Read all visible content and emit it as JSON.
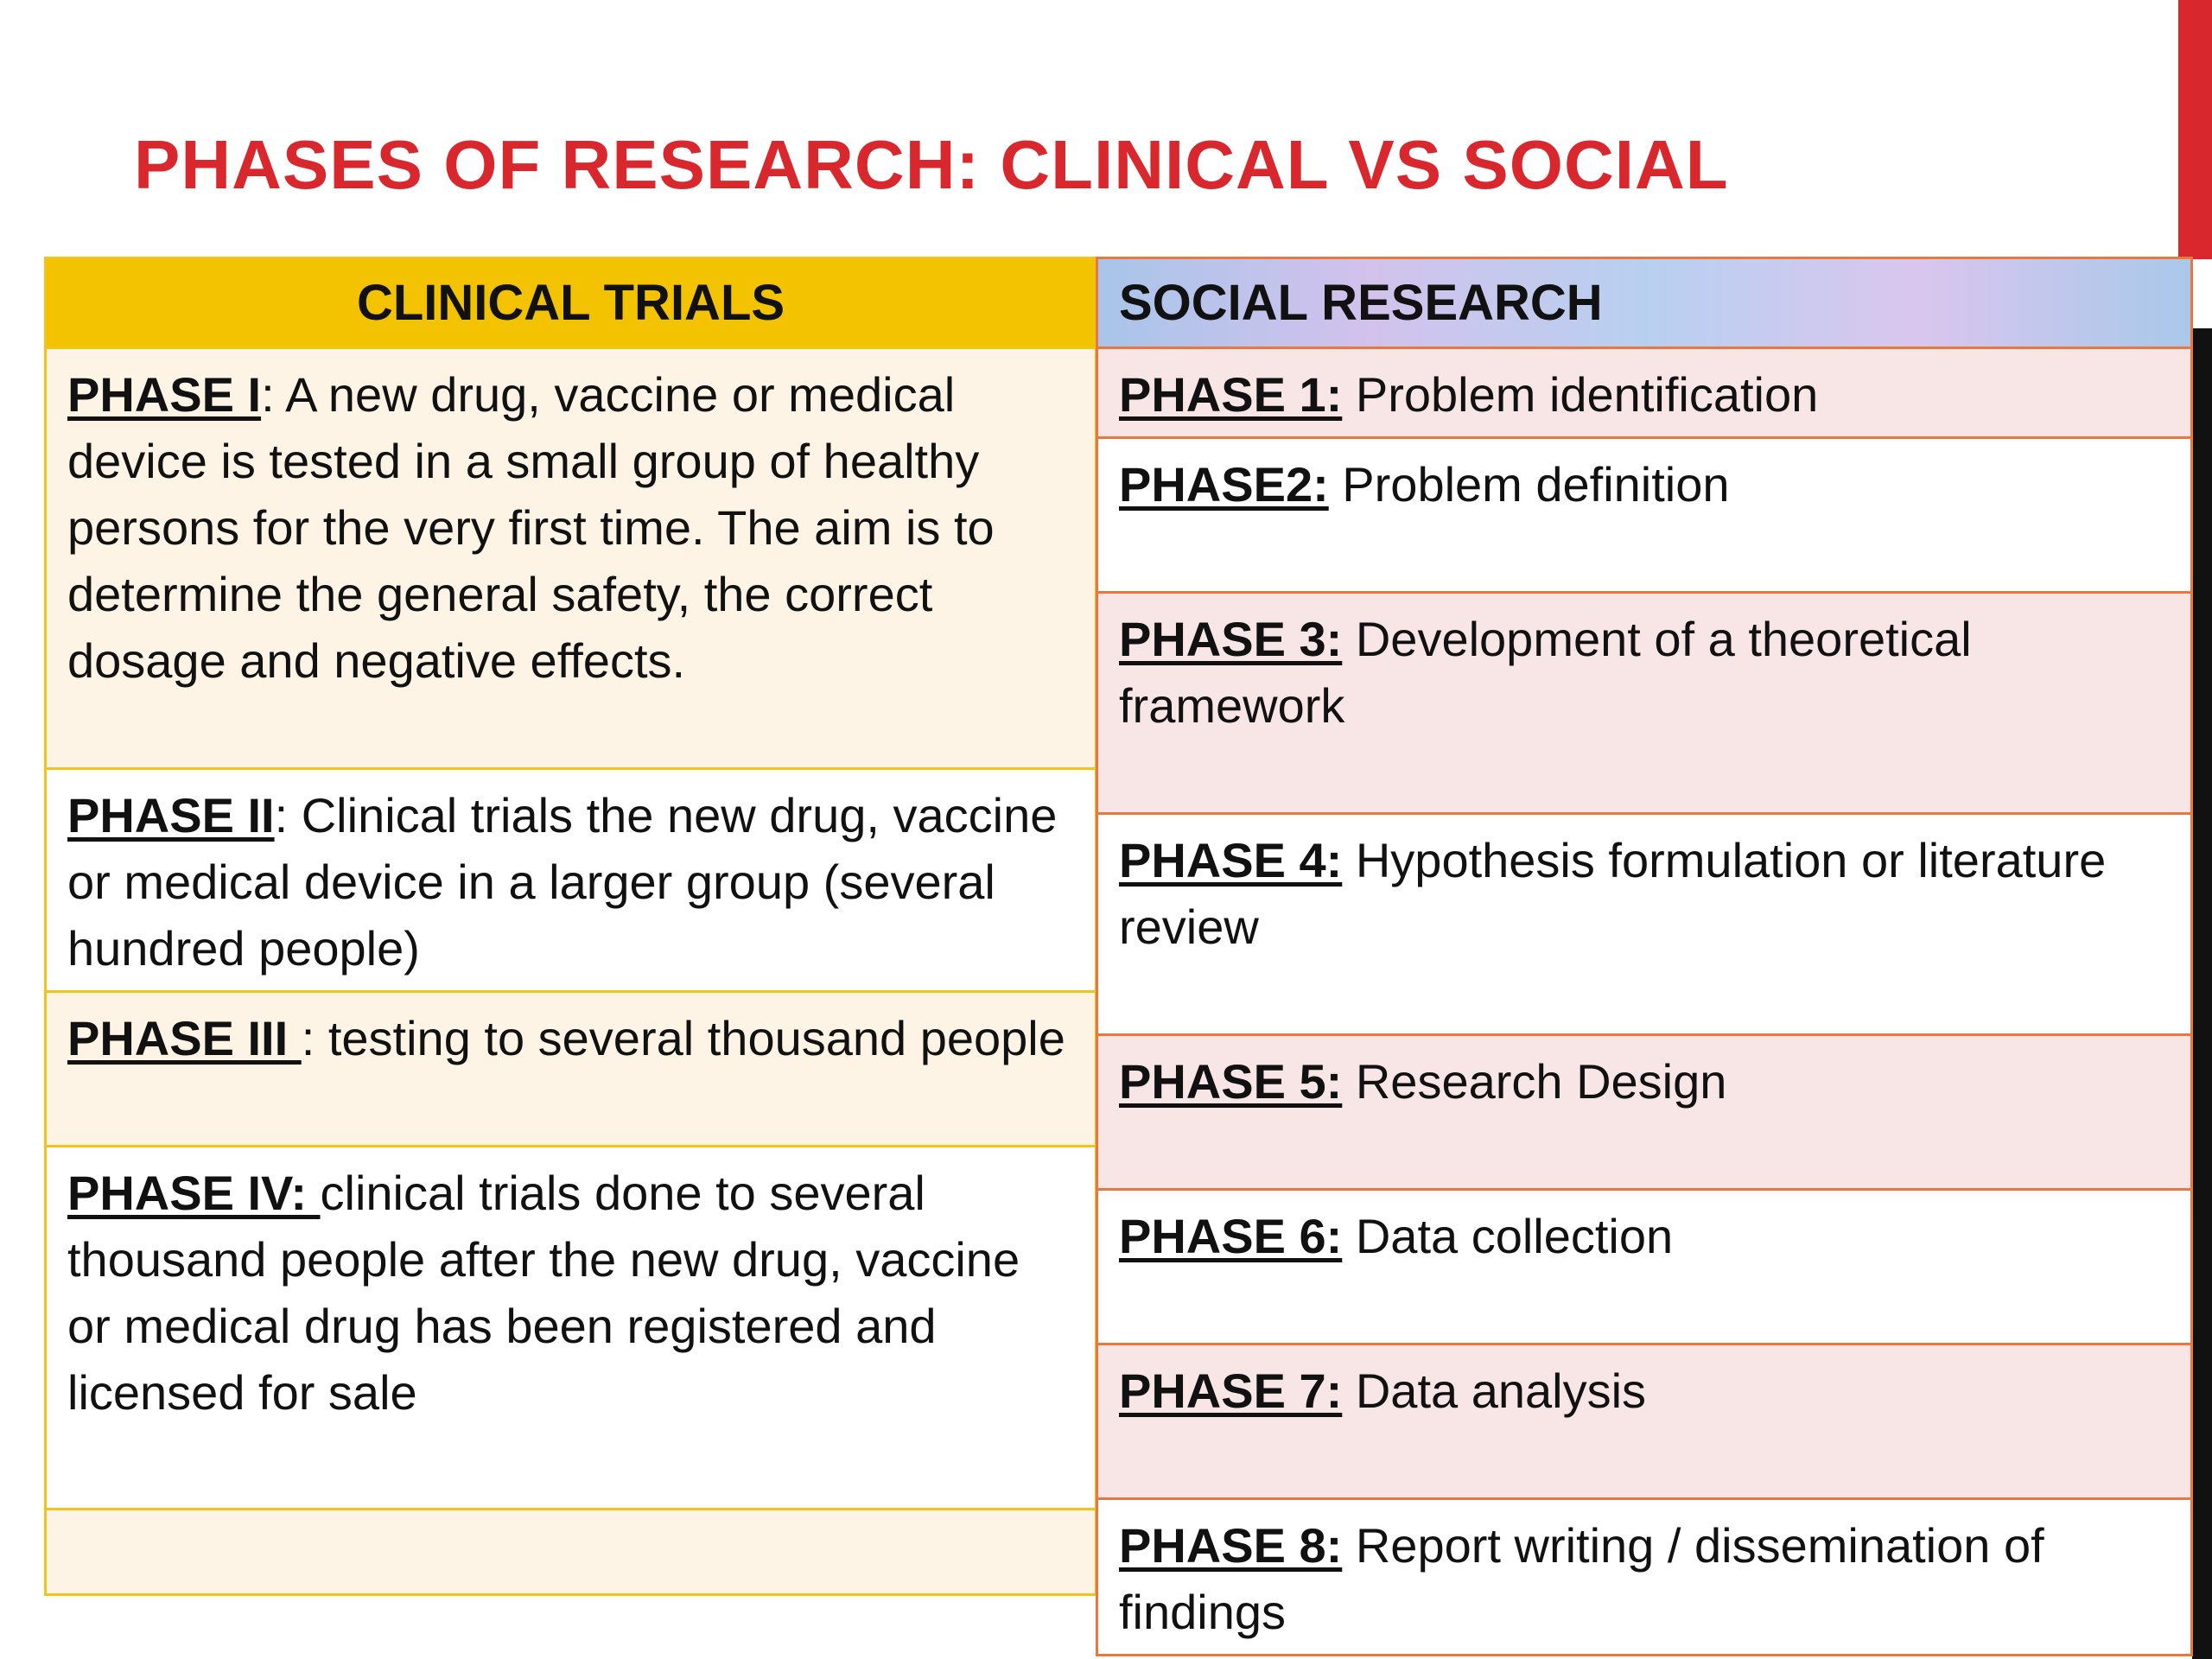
{
  "title": "PHASES OF RESEARCH: CLINICAL VS SOCIAL",
  "clinical": {
    "header": "CLINICAL TRIALS",
    "rows": [
      {
        "phase": "PHASE I",
        "text": ": A new drug, vaccine or medical device is tested in a small group of healthy persons for the very first time. The aim is to determine the general safety, the correct dosage and negative effects."
      },
      {
        "phase": "PHASE II",
        "text": ": Clinical trials the new drug, vaccine or medical device in a larger group (several hundred people)"
      },
      {
        "phase": "PHASE III ",
        "text": ": testing to several thousand people"
      },
      {
        "phase": "PHASE IV: ",
        "text": " clinical trials done to several thousand people after the new drug, vaccine or medical drug has been registered and licensed for sale"
      },
      {
        "phase": "",
        "text": ""
      }
    ]
  },
  "social": {
    "header": "SOCIAL RESEARCH",
    "rows": [
      {
        "phase": "PHASE 1:",
        "text": " Problem identification"
      },
      {
        "phase": "PHASE2:",
        "text": "  Problem definition"
      },
      {
        "phase": "PHASE 3:",
        "text": " Development of  a theoretical framework"
      },
      {
        "phase": "PHASE 4:",
        "text": " Hypothesis formulation or literature review"
      },
      {
        "phase": "PHASE 5:",
        "text": " Research Design"
      },
      {
        "phase": "PHASE 6:",
        "text": " Data collection"
      },
      {
        "phase": "PHASE 7:",
        "text": " Data analysis"
      },
      {
        "phase": "PHASE 8:",
        "text": " Report writing / dissemination of findings"
      }
    ]
  }
}
